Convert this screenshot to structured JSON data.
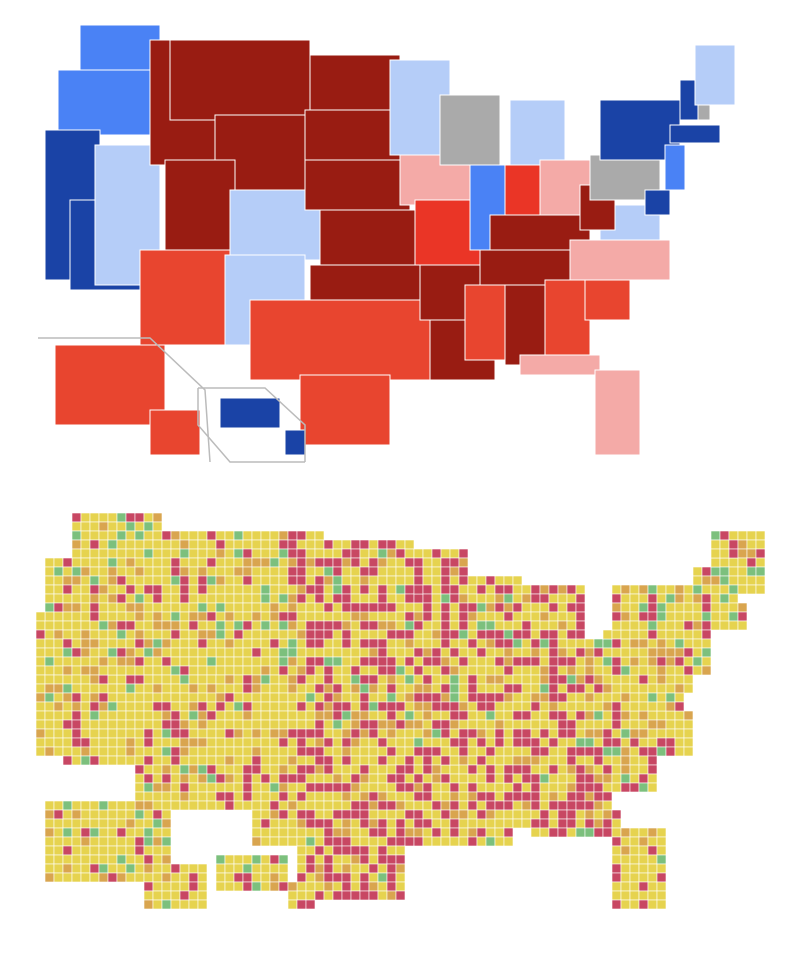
{
  "maps": [
    {
      "palette": [
        "#1a43a6",
        "#4a82f5",
        "#b5cdf8",
        "#aaaaaa",
        "#f4aaa7",
        "#e8452f",
        "#ea3526",
        "#991c12"
      ]
    },
    {
      "palette": [
        "#e6d34f",
        "#d9a54f",
        "#c84763",
        "#7cc07d"
      ]
    }
  ]
}
